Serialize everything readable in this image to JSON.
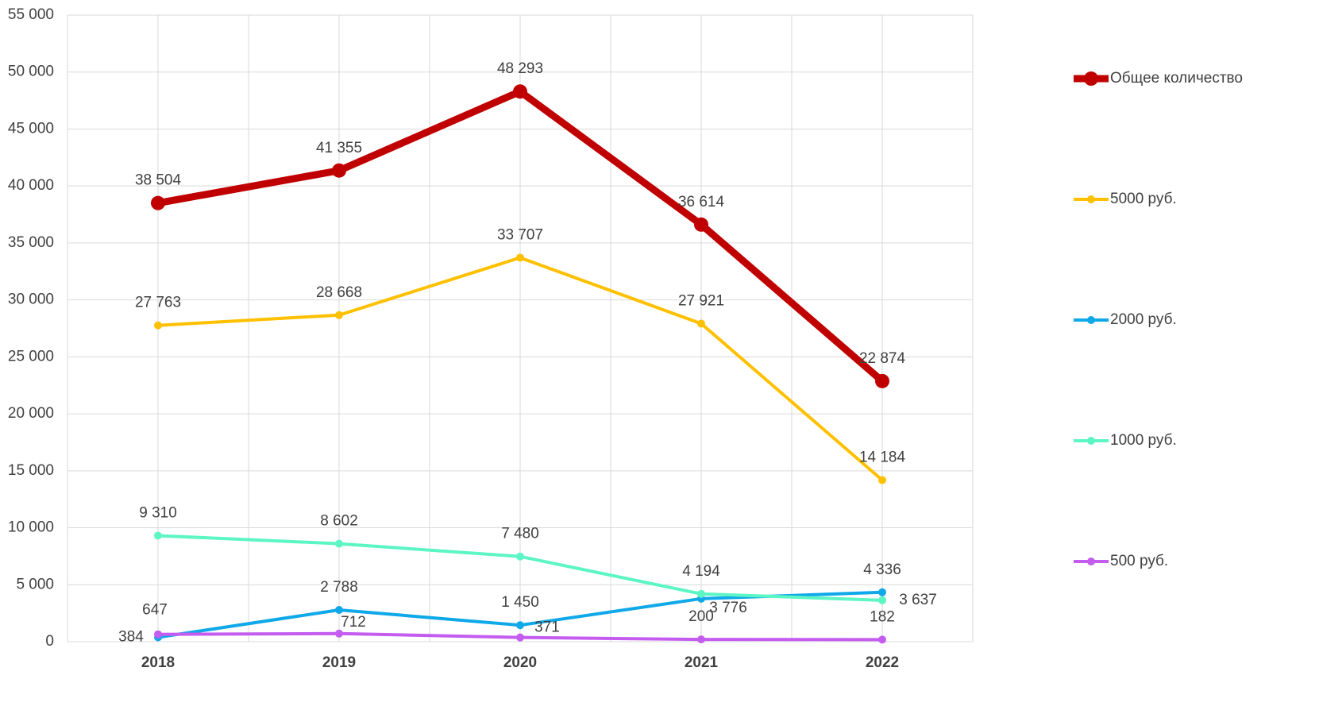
{
  "chart_data": {
    "type": "line",
    "categories": [
      "2018",
      "2019",
      "2020",
      "2021",
      "2022"
    ],
    "series": [
      {
        "name": "Общее количество",
        "color": "#c00000",
        "values": [
          38504,
          41355,
          48293,
          36614,
          22874
        ],
        "value_labels": [
          "38 504",
          "41 355",
          "48 293",
          "36 614",
          "22 874"
        ]
      },
      {
        "name": "5000 руб.",
        "color": "#ffc000",
        "values": [
          27763,
          28668,
          33707,
          27921,
          14184
        ],
        "value_labels": [
          "27 763",
          "28 668",
          "33 707",
          "27 921",
          "14 184"
        ]
      },
      {
        "name": "2000 руб.",
        "color": "#0fa8e8",
        "values": [
          384,
          2788,
          1450,
          3776,
          4336
        ],
        "value_labels": [
          "384",
          "2 788",
          "1 450",
          "3 776",
          "4 336"
        ]
      },
      {
        "name": "1000 руб.",
        "color": "#5cf5c4",
        "values": [
          9310,
          8602,
          7480,
          4194,
          3637
        ],
        "value_labels": [
          "9 310",
          "8 602",
          "7 480",
          "4 194",
          "3 637"
        ]
      },
      {
        "name": "500 руб.",
        "color": "#c45cf0",
        "values": [
          647,
          712,
          371,
          200,
          182
        ],
        "value_labels": [
          "647",
          "712",
          "371",
          "200",
          "182"
        ]
      }
    ],
    "ylim": [
      0,
      55000
    ],
    "yticks": [
      0,
      {
        "value": 5000,
        "label": "5 000"
      },
      {
        "value": 10000,
        "label": "10 000"
      },
      {
        "value": 15000,
        "label": "15 000"
      },
      {
        "value": 20000,
        "label": "20 000"
      },
      {
        "value": 25000,
        "label": "25 000"
      },
      {
        "value": 30000,
        "label": "30 000"
      },
      {
        "value": 35000,
        "label": "35 000"
      },
      {
        "value": 40000,
        "label": "40 000"
      },
      {
        "value": 45000,
        "label": "45 000"
      },
      {
        "value": 50000,
        "label": "50 000"
      },
      {
        "value": 55000,
        "label": "55 000"
      }
    ],
    "grid": true,
    "legend": "right"
  }
}
